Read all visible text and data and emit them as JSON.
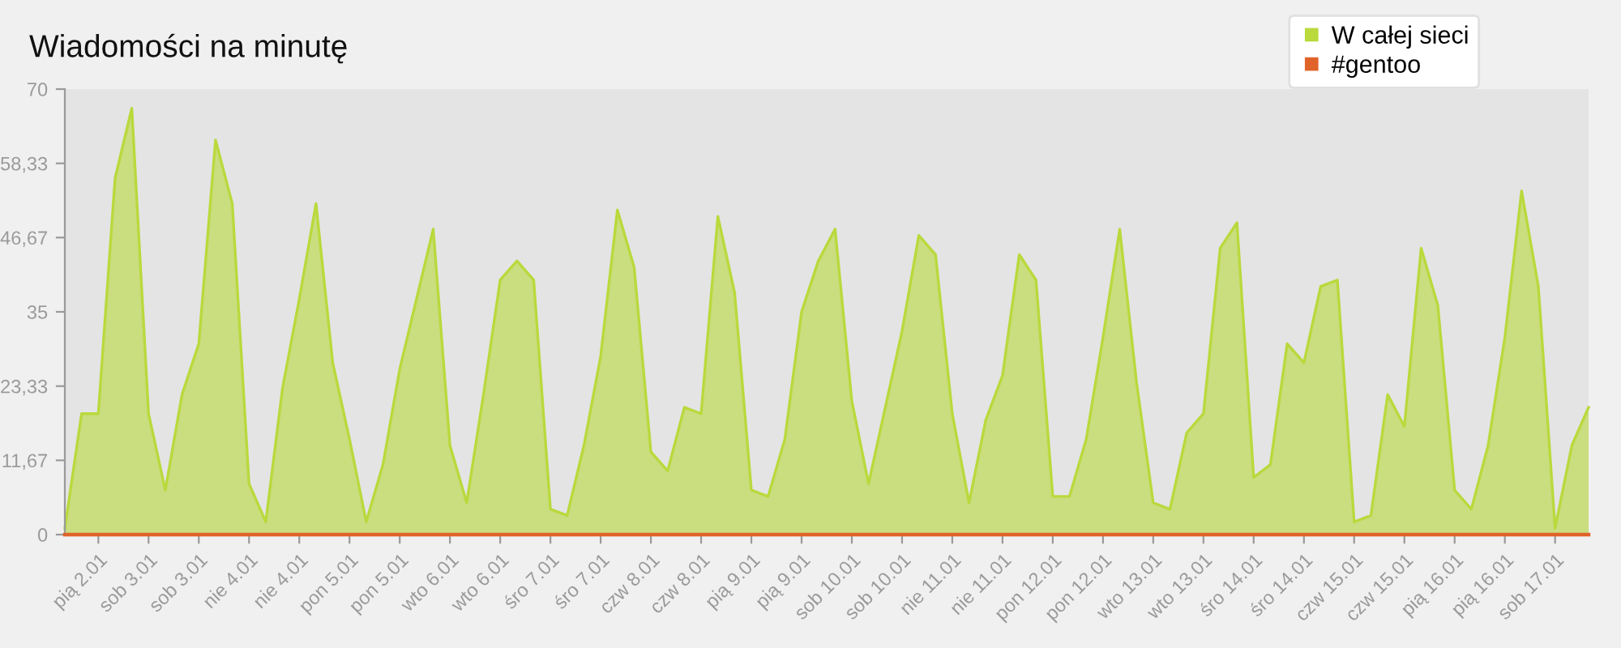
{
  "chart_data": {
    "type": "area",
    "title": "Wiadomości na minutę",
    "categories": [
      null,
      null,
      "pią 2.01",
      null,
      null,
      "sob 3.01",
      null,
      null,
      "sob 3.01",
      null,
      null,
      "nie 4.01",
      null,
      null,
      "nie 4.01",
      null,
      null,
      "pon 5.01",
      null,
      null,
      "pon 5.01",
      null,
      null,
      "wto 6.01",
      null,
      null,
      "wto 6.01",
      null,
      null,
      "śro 7.01",
      null,
      null,
      "śro 7.01",
      null,
      null,
      "czw 8.01",
      null,
      null,
      "czw 8.01",
      null,
      null,
      "pią 9.01",
      null,
      null,
      "pią 9.01",
      null,
      null,
      "sob 10.01",
      null,
      null,
      "sob 10.01",
      null,
      null,
      "nie 11.01",
      null,
      null,
      "nie 11.01",
      null,
      null,
      "pon 12.01",
      null,
      null,
      "pon 12.01",
      null,
      null,
      "wto 13.01",
      null,
      null,
      "wto 13.01",
      null,
      null,
      "śro 14.01",
      null,
      null,
      "śro 14.01",
      null,
      null,
      "czw 15.01",
      null,
      null,
      "czw 15.01",
      null,
      null,
      "pią 16.01",
      null,
      null,
      "pią 16.01",
      null,
      null,
      "sob 17.01",
      null,
      null
    ],
    "series": [
      {
        "name": "W całej sieci",
        "color": "#b9d93c",
        "values": [
          1,
          19,
          19,
          56,
          67,
          19,
          7,
          22,
          30,
          62,
          52,
          8,
          2,
          23,
          37,
          52,
          27,
          15,
          2,
          11,
          26,
          37,
          48,
          14,
          5,
          22,
          40,
          43,
          40,
          4,
          3,
          14,
          28,
          51,
          42,
          13,
          10,
          20,
          19,
          50,
          38,
          7,
          6,
          15,
          35,
          43,
          48,
          21,
          8,
          20,
          32,
          47,
          44,
          19,
          5,
          18,
          25,
          44,
          40,
          6,
          6,
          15,
          31,
          48,
          24,
          5,
          4,
          16,
          19,
          45,
          49,
          9,
          11,
          30,
          27,
          39,
          40,
          2,
          3,
          22,
          17,
          45,
          36,
          7,
          4,
          14,
          31,
          54,
          39,
          1,
          14,
          20
        ]
      },
      {
        "name": "#gentoo",
        "type": "line",
        "color": "#e0632a",
        "values": [
          0,
          0,
          0,
          0,
          0,
          0,
          0,
          0,
          0,
          0,
          0,
          0,
          0,
          0,
          0,
          0,
          0,
          0,
          0,
          0,
          0,
          0,
          0,
          0,
          0,
          0,
          0,
          0,
          0,
          0,
          0,
          0,
          0,
          0,
          0,
          0,
          0,
          0,
          0,
          0,
          0,
          0,
          0,
          0,
          0,
          0,
          0,
          0,
          0,
          0,
          0,
          0,
          0,
          0,
          0,
          0,
          0,
          0,
          0,
          0,
          0,
          0,
          0,
          0,
          0,
          0,
          0,
          0,
          0,
          0,
          0,
          0,
          0,
          0,
          0,
          0,
          0,
          0,
          0,
          0,
          0,
          0,
          0,
          0,
          0,
          0,
          0,
          0,
          0,
          0,
          0,
          0
        ]
      }
    ],
    "ylim": [
      0,
      70
    ],
    "yticks": [
      0,
      {
        "value": 11.67,
        "label": "11,67"
      },
      {
        "value": 23.33,
        "label": "23,33"
      },
      35,
      {
        "value": 46.67,
        "label": "46,67"
      },
      {
        "value": 58.33,
        "label": "58,33"
      },
      70
    ],
    "legend": "top right"
  }
}
